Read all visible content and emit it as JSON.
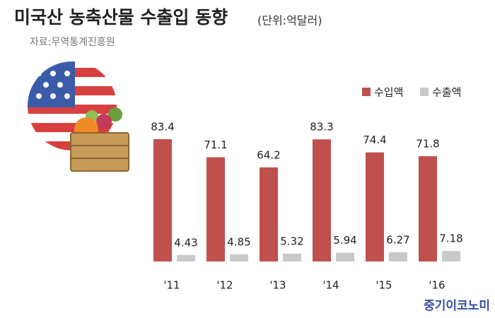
{
  "chart_data": {
    "type": "bar",
    "title": "미국산 농축산물 수출입 동향",
    "unit": "(단위:억달러)",
    "source": "자료:무역통계진흥원",
    "brand": "중기이코노미",
    "categories": [
      "'11",
      "'12",
      "'13",
      "'14",
      "'15",
      "'16"
    ],
    "series": [
      {
        "name": "수입액",
        "color": "#c0504d",
        "values": [
          83.4,
          71.1,
          64.2,
          83.3,
          74.4,
          71.8
        ]
      },
      {
        "name": "수출액",
        "color": "#c9c9c9",
        "values": [
          4.43,
          4.85,
          5.32,
          5.94,
          6.27,
          7.18
        ]
      }
    ],
    "legend": "top-right"
  }
}
